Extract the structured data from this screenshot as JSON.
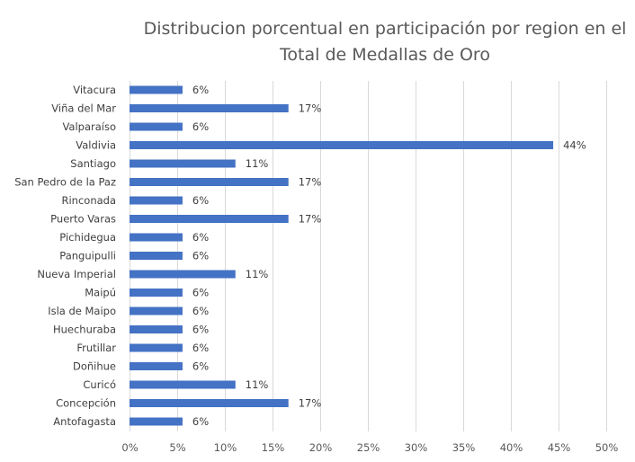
{
  "chart_data": {
    "type": "bar",
    "orientation": "horizontal",
    "title": "Distribucion porcentual en  participación por region en el Total de Medallas de Oro",
    "title_lines": [
      "Distribucion porcentual en  participación por region en el",
      "Total de Medallas de Oro"
    ],
    "xlabel": "",
    "ylabel": "",
    "categories": [
      "Vitacura",
      "Viña del Mar",
      "Valparaíso",
      "Valdivia",
      "Santiago",
      "San Pedro de la Paz",
      "Rinconada",
      "Puerto Varas",
      "Pichidegua",
      "Panguipulli",
      "Nueva Imperial",
      "Maipú",
      "Isla de Maipo",
      "Huechuraba",
      "Frutillar",
      "Doñihue",
      "Curicó",
      "Concepción",
      "Antofagasta"
    ],
    "values": [
      5.56,
      16.67,
      5.56,
      44.44,
      11.11,
      16.67,
      5.56,
      16.67,
      5.56,
      5.56,
      11.11,
      5.56,
      5.56,
      5.56,
      5.56,
      5.56,
      11.11,
      16.67,
      5.56
    ],
    "data_labels": [
      "6%",
      "17%",
      "6%",
      "44%",
      "11%",
      "17%",
      "6%",
      "17%",
      "6%",
      "6%",
      "11%",
      "6%",
      "6%",
      "6%",
      "6%",
      "6%",
      "11%",
      "17%",
      "6%"
    ],
    "xlim": [
      0,
      50
    ],
    "xticks": [
      0,
      5,
      10,
      15,
      20,
      25,
      30,
      35,
      40,
      45,
      50
    ],
    "xtick_labels": [
      "0%",
      "5%",
      "10%",
      "15%",
      "20%",
      "25%",
      "30%",
      "35%",
      "40%",
      "45%",
      "50%"
    ],
    "grid": "vertical",
    "legend": "none",
    "colors": {
      "bar": "#4472C4",
      "grid": "#D9D9D9",
      "text": "#404040",
      "title": "#595959"
    }
  }
}
